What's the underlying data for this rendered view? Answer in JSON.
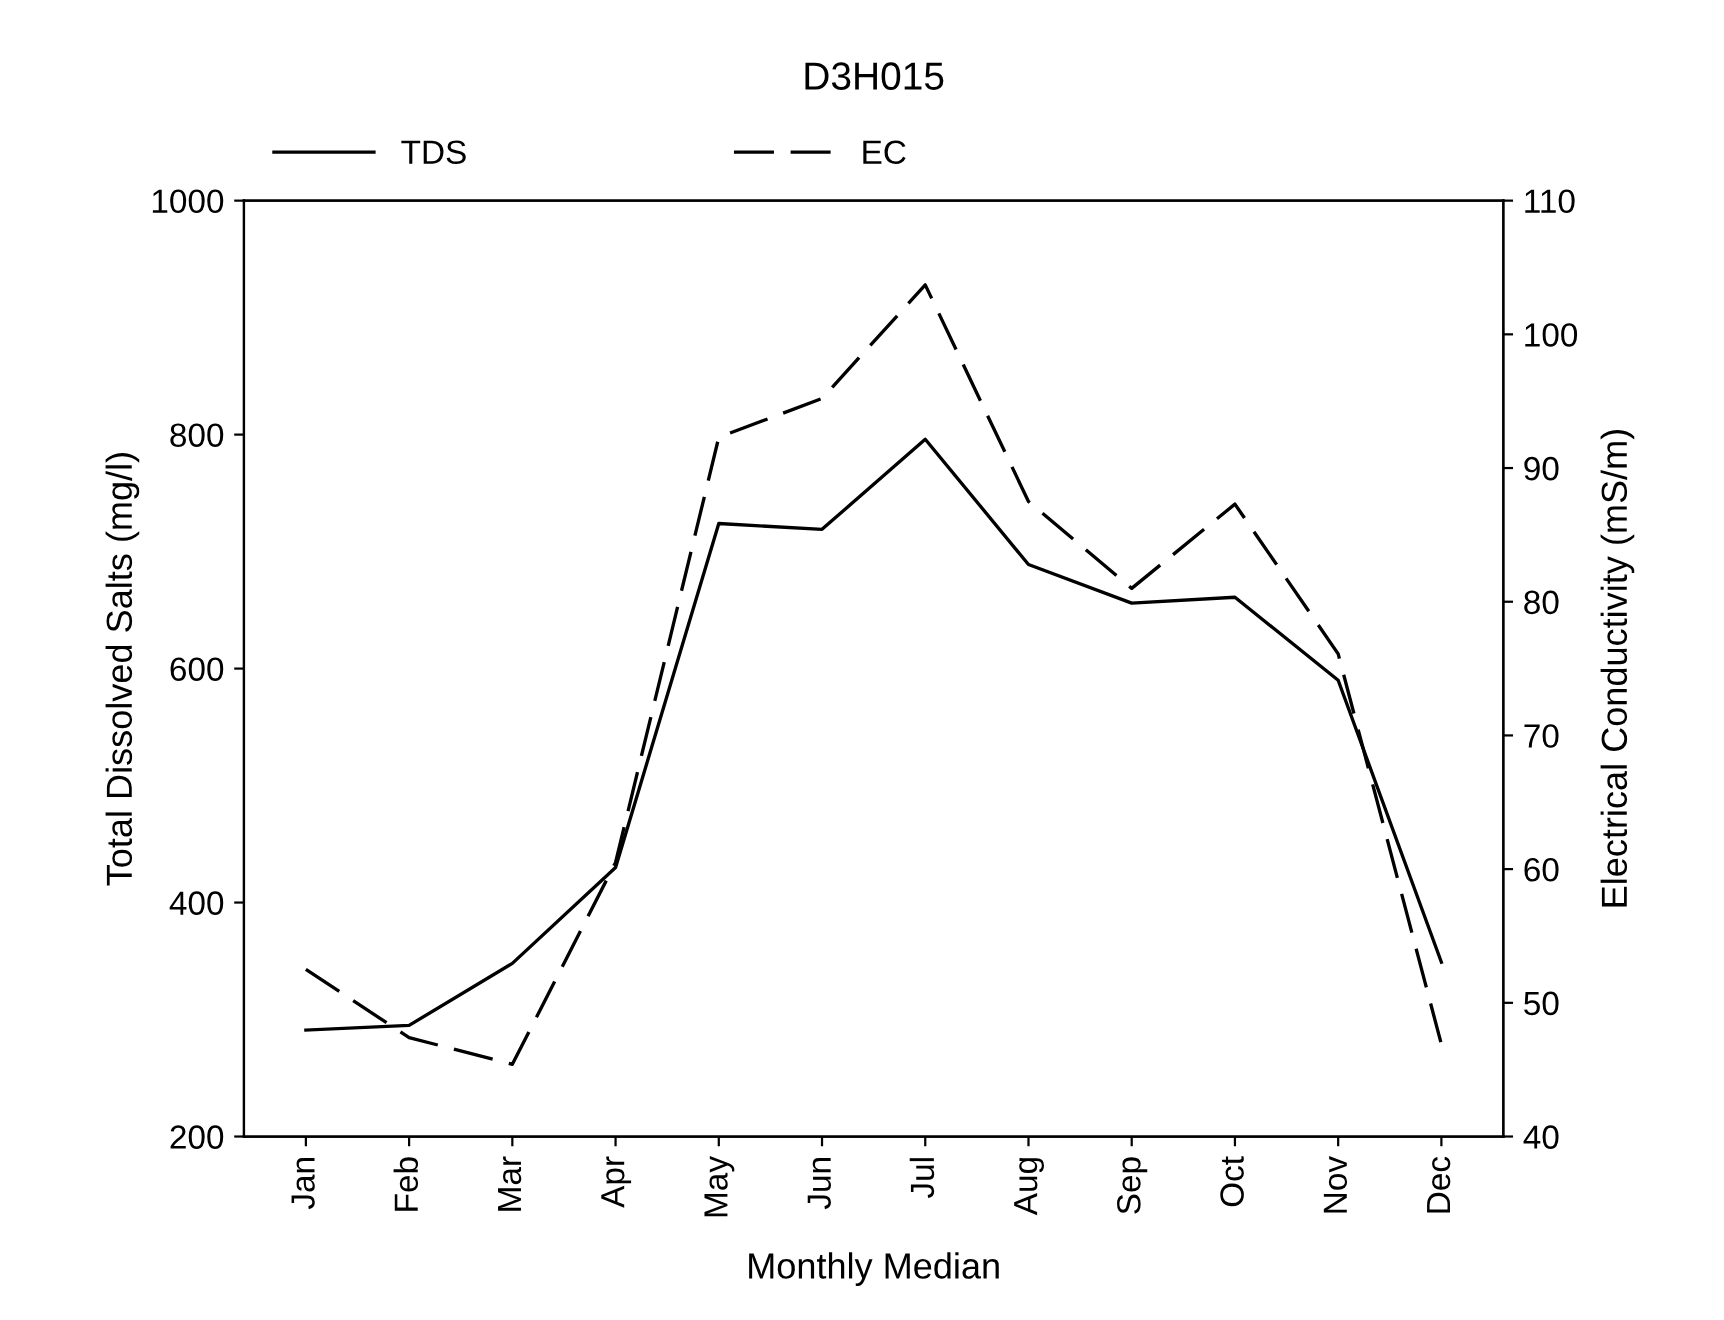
{
  "chart_data": {
    "type": "line",
    "title": "D3H015",
    "xlabel": "Monthly Median",
    "ylabel": "Total Dissolved Salts (mg/l)",
    "y2label": "Electrical Conductivity (mS/m)",
    "categories": [
      "Jan",
      "Feb",
      "Mar",
      "Apr",
      "May",
      "Jun",
      "Jul",
      "Aug",
      "Sep",
      "Oct",
      "Nov",
      "Dec"
    ],
    "series": [
      {
        "name": "TDS",
        "color": "#000000",
        "line_style": "solid",
        "values": [
          291,
          295,
          348,
          430,
          724,
          719,
          796,
          689,
          656,
          661,
          590,
          349
        ]
      },
      {
        "name": "EC",
        "color": "#000000",
        "line_style": "dashed",
        "axis": "y2",
        "values": [
          52.5,
          47.4,
          45.4,
          60.5,
          92.3,
          95.2,
          103.7,
          87.5,
          81,
          87.3,
          76.1,
          46.9
        ]
      }
    ],
    "ylim": [
      200,
      1000
    ],
    "yticks": [
      200,
      400,
      600,
      800,
      1000
    ],
    "y2lim": [
      40,
      110
    ],
    "y2ticks": [
      40,
      50,
      60,
      70,
      80,
      90,
      100,
      110
    ],
    "legend": "top left",
    "grid": false,
    "marker": "none"
  }
}
